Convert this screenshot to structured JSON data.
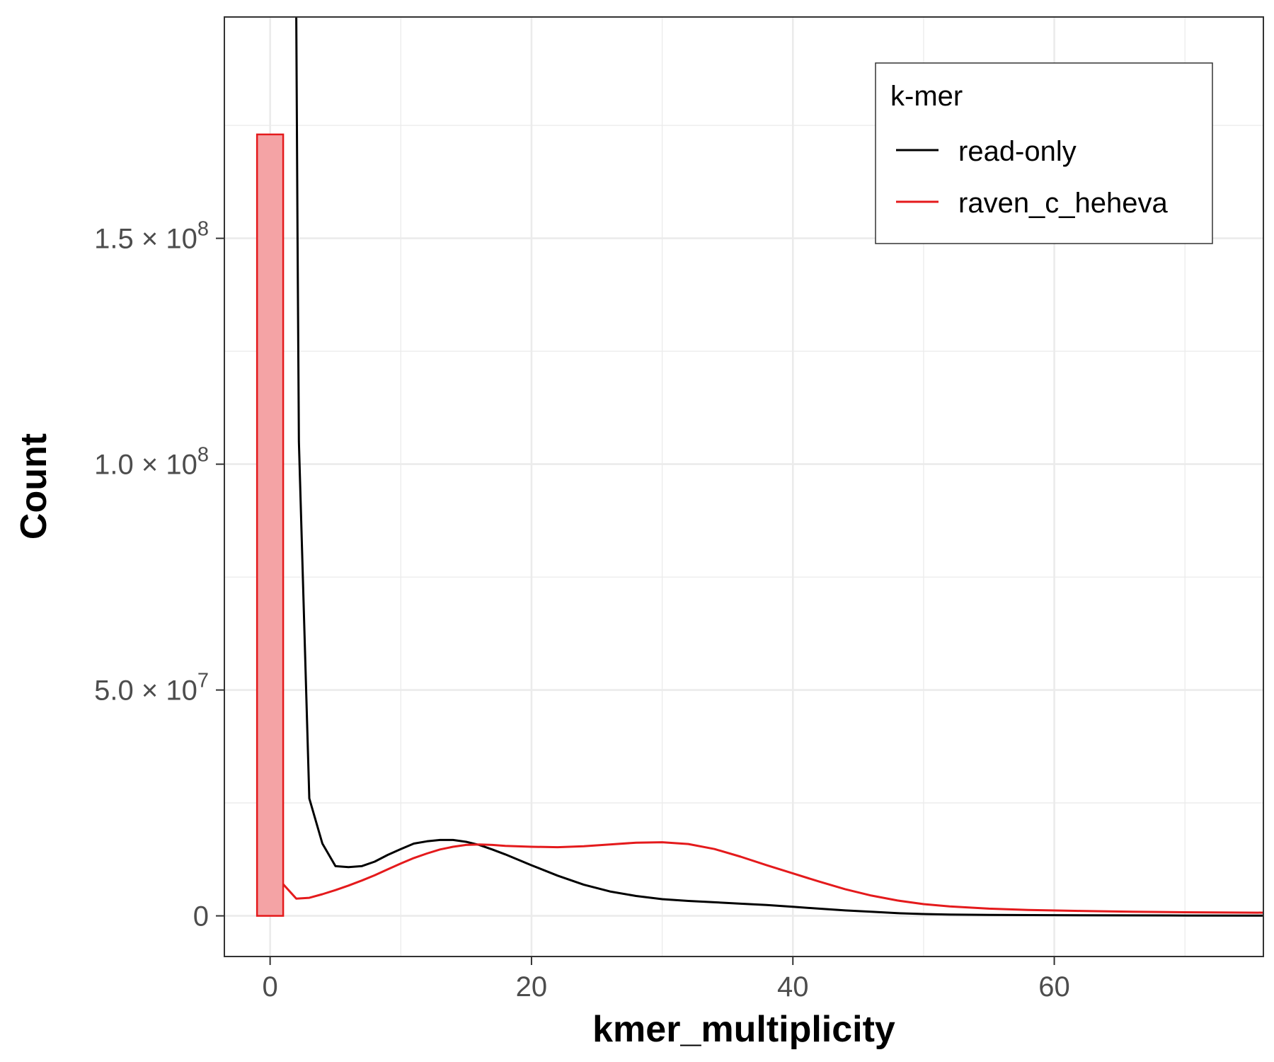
{
  "chart_data": {
    "type": "line",
    "xlabel": "kmer_multiplicity",
    "ylabel": "Count",
    "xlim": [
      -3.5,
      76
    ],
    "ylim": [
      -9000000,
      199000000
    ],
    "x_ticks": [
      0,
      20,
      40,
      60
    ],
    "x_tick_labels": [
      "0",
      "20",
      "40",
      "60"
    ],
    "y_ticks": [
      0,
      50000000,
      100000000,
      150000000
    ],
    "y_tick_labels": [
      {
        "mantissa": "0",
        "exponent": ""
      },
      {
        "mantissa": "5.0 × 10",
        "exponent": "7"
      },
      {
        "mantissa": "1.0 × 10",
        "exponent": "8"
      },
      {
        "mantissa": "1.5 × 10",
        "exponent": "8"
      }
    ],
    "grid": true,
    "legend": {
      "title": "k-mer",
      "placement": "top-right",
      "entries": [
        {
          "label": "read-only",
          "color": "#000000"
        },
        {
          "label": "raven_c_heheva",
          "color": "#e41a1c"
        }
      ]
    },
    "bars": [
      {
        "series": "raven_c_heheva",
        "x_start": -1,
        "x_end": 1,
        "value": 173000000,
        "fill": "#f4a3a5",
        "stroke": "#e41a1c"
      }
    ],
    "series": [
      {
        "name": "read-only",
        "color": "#000000",
        "x": [
          2,
          2.1,
          2.2,
          3,
          4,
          5,
          6,
          7,
          8,
          9,
          10,
          11,
          12,
          13,
          14,
          15,
          16,
          17,
          18,
          20,
          22,
          24,
          26,
          28,
          30,
          32,
          34,
          36,
          38,
          40,
          42,
          44,
          46,
          48,
          50,
          52,
          55,
          60,
          65,
          70,
          76
        ],
        "y": [
          199000000,
          150000000,
          105000000,
          26000000,
          16000000,
          11000000,
          10800000,
          11000000,
          12000000,
          13500000,
          14800000,
          16000000,
          16500000,
          16800000,
          16800000,
          16400000,
          15700000,
          14700000,
          13600000,
          11200000,
          8900000,
          6900000,
          5400000,
          4400000,
          3700000,
          3300000,
          3000000,
          2700000,
          2400000,
          2000000,
          1600000,
          1200000,
          900000,
          600000,
          400000,
          300000,
          200000,
          150000,
          100000,
          80000,
          50000
        ]
      },
      {
        "name": "raven_c_heheva",
        "color": "#e41a1c",
        "x": [
          1,
          2,
          3,
          4,
          5,
          6,
          7,
          8,
          9,
          10,
          11,
          12,
          13,
          14,
          15,
          16,
          17,
          18,
          20,
          22,
          24,
          26,
          28,
          30,
          32,
          34,
          36,
          38,
          40,
          42,
          44,
          46,
          48,
          50,
          52,
          55,
          58,
          62,
          66,
          70,
          76
        ],
        "y": [
          7000000,
          3800000,
          4000000,
          4800000,
          5700000,
          6700000,
          7800000,
          9000000,
          10300000,
          11600000,
          12800000,
          13800000,
          14700000,
          15300000,
          15700000,
          15800000,
          15700000,
          15500000,
          15300000,
          15200000,
          15400000,
          15800000,
          16200000,
          16300000,
          15900000,
          14800000,
          13100000,
          11200000,
          9400000,
          7600000,
          5900000,
          4500000,
          3400000,
          2600000,
          2100000,
          1600000,
          1300000,
          1100000,
          900000,
          800000,
          700000
        ]
      }
    ]
  }
}
